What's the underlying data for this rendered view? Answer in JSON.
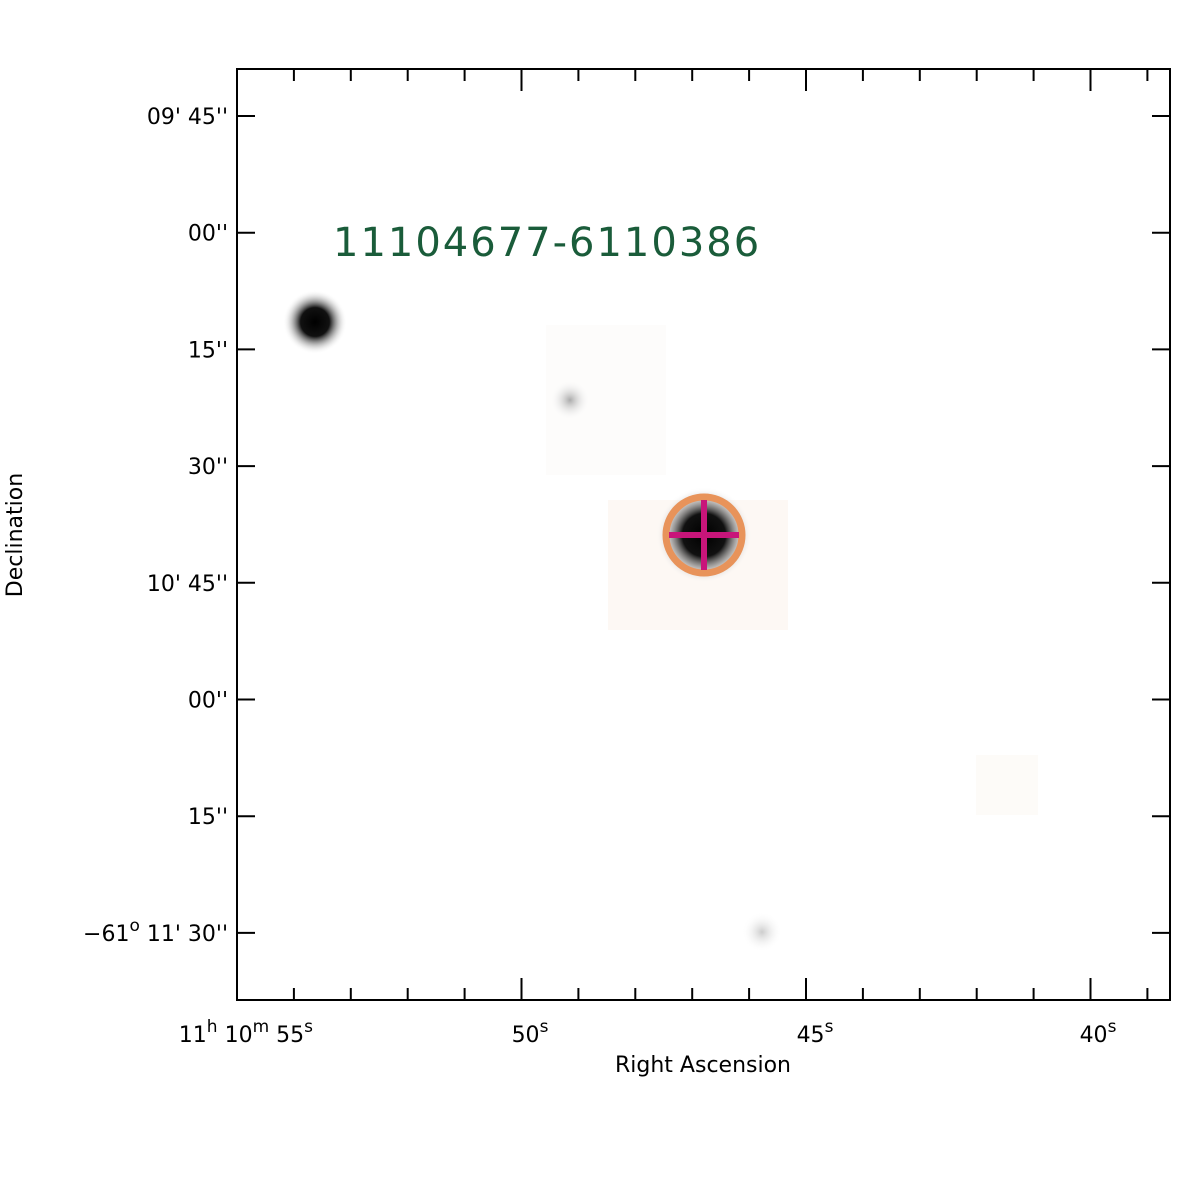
{
  "label": "11104677-6110386",
  "x_axis": {
    "title": "Right Ascension",
    "ticks": [
      [
        "11",
        "h",
        " 10",
        "m",
        " 55",
        "s"
      ],
      [
        "50",
        "s"
      ],
      [
        "45",
        "s"
      ],
      [
        "40",
        "s"
      ]
    ]
  },
  "y_axis": {
    "title": "Declination",
    "ticks": [
      [
        "09' 45''"
      ],
      [
        "00''"
      ],
      [
        "15''"
      ],
      [
        "30''"
      ],
      [
        "10' 45''"
      ],
      [
        "00''"
      ],
      [
        "15''"
      ],
      [
        "−61",
        "o",
        " 11' 30''"
      ]
    ]
  }
}
